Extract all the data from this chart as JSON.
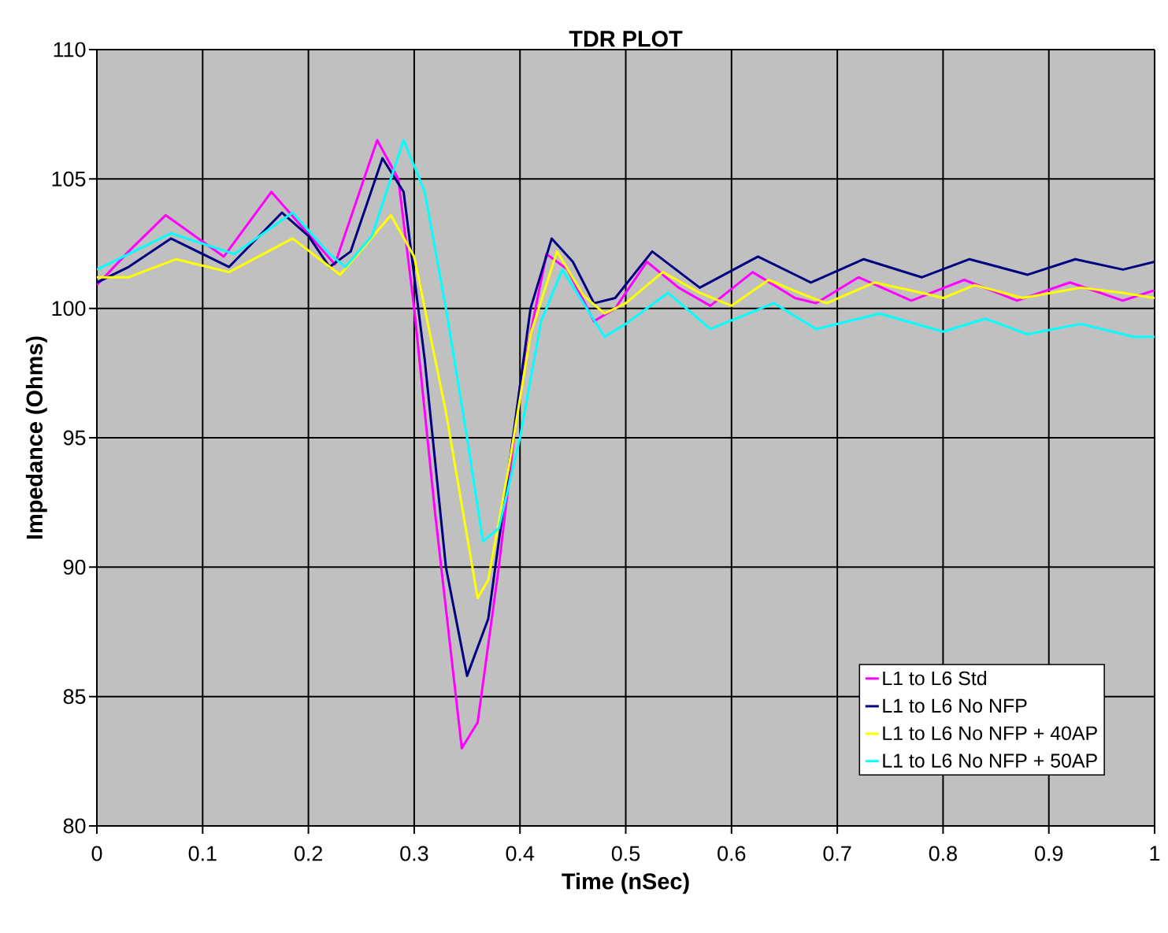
{
  "chart_data": {
    "type": "line",
    "title": "TDR PLOT",
    "xlabel": "Time (nSec)",
    "ylabel": "Impedance (Ohms)",
    "xlim": [
      0,
      1
    ],
    "ylim": [
      80,
      110
    ],
    "xticks": [
      0,
      0.1,
      0.2,
      0.3,
      0.4,
      0.5,
      0.6,
      0.7,
      0.8,
      0.9,
      1
    ],
    "yticks": [
      80,
      85,
      90,
      95,
      100,
      105,
      110
    ],
    "grid": true,
    "legend": "bottom right",
    "marker": "none",
    "line_style": "solid",
    "series": [
      {
        "name": "L1 to L6 Std",
        "color": "#ff00ff",
        "x": [
          0,
          0.03,
          0.065,
          0.12,
          0.165,
          0.225,
          0.265,
          0.285,
          0.3,
          0.32,
          0.345,
          0.36,
          0.38,
          0.4,
          0.425,
          0.445,
          0.47,
          0.49,
          0.52,
          0.55,
          0.58,
          0.62,
          0.66,
          0.68,
          0.72,
          0.77,
          0.82,
          0.87,
          0.92,
          0.97,
          1.0
        ],
        "values": [
          100.9,
          102.2,
          103.6,
          102.0,
          104.5,
          101.7,
          106.5,
          105.0,
          100.0,
          92.0,
          83.0,
          84.0,
          90.0,
          97.0,
          102.1,
          101.5,
          99.5,
          100.0,
          101.8,
          100.8,
          100.1,
          101.4,
          100.4,
          100.2,
          101.2,
          100.3,
          101.1,
          100.3,
          101.0,
          100.3,
          100.7
        ]
      },
      {
        "name": "L1 to L6 No NFP",
        "color": "#000080",
        "x": [
          0,
          0.03,
          0.07,
          0.125,
          0.175,
          0.2,
          0.22,
          0.24,
          0.27,
          0.29,
          0.31,
          0.33,
          0.35,
          0.37,
          0.39,
          0.41,
          0.43,
          0.45,
          0.47,
          0.49,
          0.525,
          0.57,
          0.625,
          0.675,
          0.725,
          0.78,
          0.825,
          0.88,
          0.925,
          0.97,
          1.0
        ],
        "values": [
          101.0,
          101.6,
          102.7,
          101.6,
          103.7,
          102.8,
          101.6,
          102.2,
          105.8,
          104.5,
          98.0,
          90.0,
          85.8,
          88.0,
          94.0,
          100.0,
          102.7,
          101.8,
          100.2,
          100.4,
          102.2,
          100.8,
          102.0,
          101.0,
          101.9,
          101.2,
          101.9,
          101.3,
          101.9,
          101.5,
          101.8
        ]
      },
      {
        "name": "L1 to L6 No NFP + 40AP",
        "color": "#ffff00",
        "x": [
          0,
          0.03,
          0.075,
          0.125,
          0.185,
          0.23,
          0.278,
          0.3,
          0.33,
          0.36,
          0.37,
          0.39,
          0.41,
          0.435,
          0.46,
          0.48,
          0.5,
          0.535,
          0.57,
          0.6,
          0.635,
          0.67,
          0.69,
          0.735,
          0.78,
          0.8,
          0.83,
          0.875,
          0.93,
          0.97,
          1.0
        ],
        "values": [
          101.2,
          101.2,
          101.9,
          101.4,
          102.7,
          101.3,
          103.6,
          102.0,
          96.0,
          88.8,
          89.5,
          94.0,
          99.0,
          102.2,
          100.5,
          99.8,
          100.2,
          101.4,
          100.6,
          100.1,
          101.1,
          100.5,
          100.2,
          101.0,
          100.6,
          100.4,
          100.9,
          100.4,
          100.8,
          100.6,
          100.4
        ]
      },
      {
        "name": "L1 to L6 No NFP + 50AP",
        "color": "#00ffff",
        "x": [
          0,
          0.03,
          0.07,
          0.13,
          0.185,
          0.22,
          0.235,
          0.26,
          0.29,
          0.31,
          0.33,
          0.35,
          0.365,
          0.38,
          0.4,
          0.42,
          0.44,
          0.46,
          0.48,
          0.5,
          0.54,
          0.58,
          0.64,
          0.68,
          0.74,
          0.8,
          0.84,
          0.88,
          0.93,
          0.98,
          1.0
        ],
        "values": [
          101.5,
          102.1,
          102.9,
          102.1,
          103.7,
          102.1,
          101.6,
          102.8,
          106.5,
          104.5,
          100.0,
          95.0,
          91.0,
          91.5,
          95.0,
          99.5,
          101.5,
          100.2,
          98.9,
          99.4,
          100.6,
          99.2,
          100.2,
          99.2,
          99.8,
          99.1,
          99.6,
          99.0,
          99.4,
          98.9,
          98.9
        ]
      }
    ]
  }
}
